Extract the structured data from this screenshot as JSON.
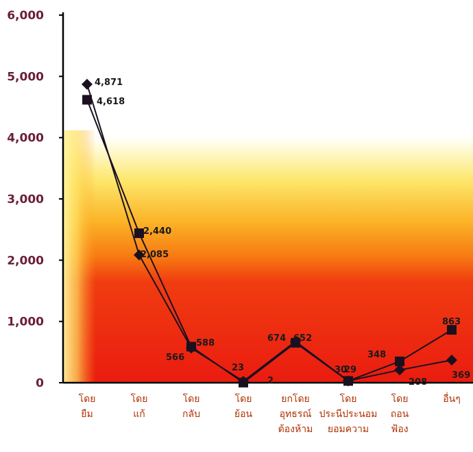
{
  "chart_data": {
    "type": "line",
    "categories": [
      [
        "โดย",
        "ยืม"
      ],
      [
        "โดย",
        "แก้"
      ],
      [
        "โดย",
        "กลับ"
      ],
      [
        "โดย",
        "ย้อน"
      ],
      [
        "ยกโดย",
        "อุทธรณ์",
        "ต้องห้าม"
      ],
      [
        "โดย",
        "ประนีประนอม",
        "ยอมความ"
      ],
      [
        "โดย",
        "ถอน",
        "ฟ้อง"
      ],
      [
        "อื่นๆ"
      ]
    ],
    "ylim": [
      0,
      6000
    ],
    "yticks": [
      "0",
      "1,000",
      "2,000",
      "3,000",
      "4,000",
      "5,000",
      "6,000"
    ],
    "series": [
      {
        "marker": "diamond",
        "values": [
          4871,
          2085,
          566,
          23,
          674,
          30,
          208,
          369
        ],
        "labels": [
          "4,871",
          "2,085",
          "566",
          "23",
          "674",
          "30",
          "208",
          "369"
        ]
      },
      {
        "marker": "square",
        "values": [
          4618,
          2440,
          588,
          2,
          652,
          29,
          348,
          863
        ],
        "labels": [
          "4,618",
          "2,440",
          "588",
          "2",
          "652",
          "29",
          "348",
          "863"
        ]
      }
    ],
    "colors": {
      "axis": "#000000",
      "tick_label": "#6b1d3a",
      "category_label": "#b03000",
      "line": "#1a1020",
      "background_bottom": "#ee1a10",
      "background_mid": "#f8a810",
      "background_left_highlight": "#fff07a"
    }
  }
}
